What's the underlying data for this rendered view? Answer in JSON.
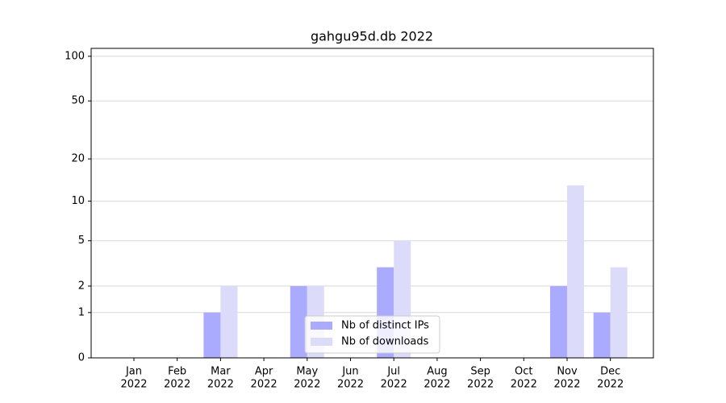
{
  "chart_data": {
    "type": "bar",
    "title": "gahgu95d.db 2022",
    "categories": [
      [
        "Jan",
        "2022"
      ],
      [
        "Feb",
        "2022"
      ],
      [
        "Mar",
        "2022"
      ],
      [
        "Apr",
        "2022"
      ],
      [
        "May",
        "2022"
      ],
      [
        "Jun",
        "2022"
      ],
      [
        "Jul",
        "2022"
      ],
      [
        "Aug",
        "2022"
      ],
      [
        "Sep",
        "2022"
      ],
      [
        "Oct",
        "2022"
      ],
      [
        "Nov",
        "2022"
      ],
      [
        "Dec",
        "2022"
      ]
    ],
    "series": [
      {
        "name": "Nb of distinct IPs",
        "color": "#aaaaff",
        "values": [
          0,
          0,
          1,
          0,
          2,
          0,
          3,
          0,
          0,
          0,
          2,
          1
        ]
      },
      {
        "name": "Nb of downloads",
        "color": "#dcdcfa",
        "values": [
          0,
          0,
          2,
          0,
          2,
          0,
          5,
          0,
          0,
          0,
          13,
          3
        ]
      }
    ],
    "y_scale": "log1p",
    "ylim": [
      0,
      113
    ],
    "yticks": [
      0,
      1,
      2,
      5,
      10,
      20,
      50,
      100
    ],
    "grid": true,
    "legend": "lower center"
  }
}
